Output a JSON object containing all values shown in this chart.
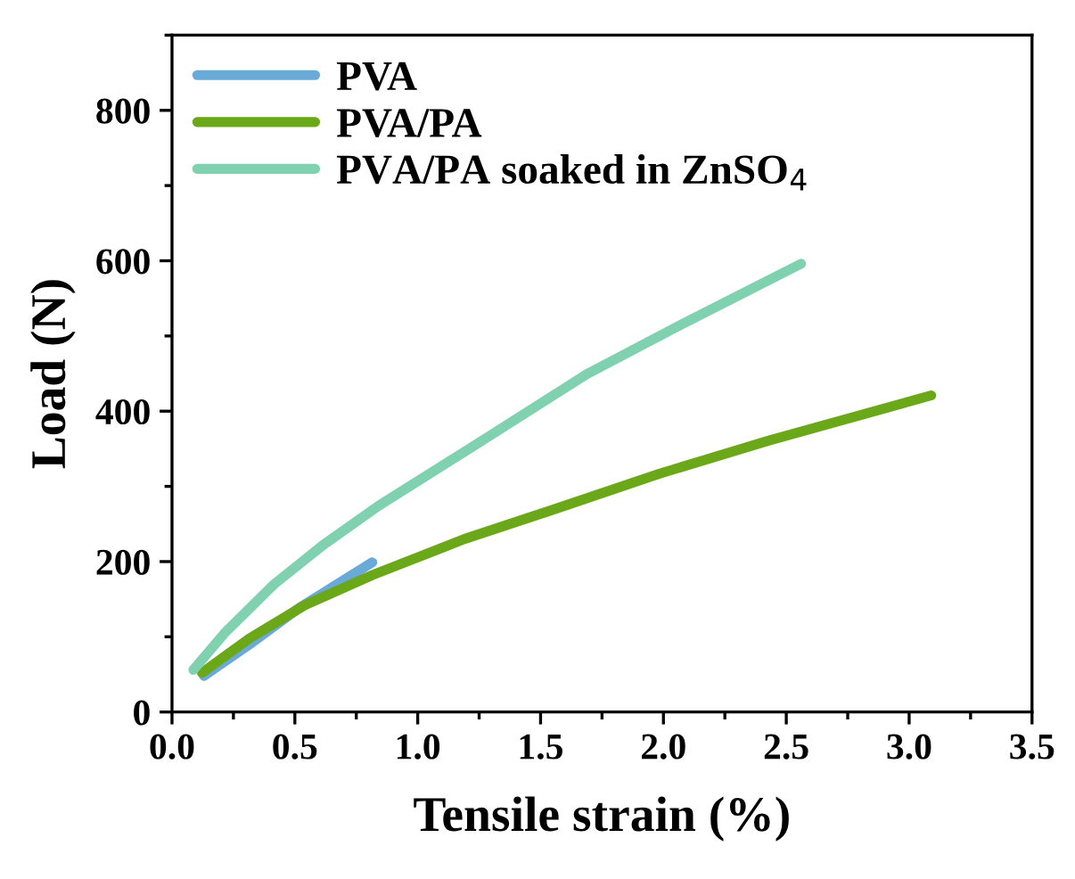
{
  "chart_data": {
    "type": "line",
    "xlabel": "Tensile strain (%)",
    "ylabel": "Load (N)",
    "xlim": [
      0,
      3.5
    ],
    "xticks": [
      {
        "value": 0,
        "label": "0.0"
      },
      0.5,
      {
        "value": 1,
        "label": "1.0"
      },
      1.5,
      {
        "value": 2,
        "label": "2.0"
      },
      2.5,
      {
        "value": 3,
        "label": "3.0"
      },
      3.5
    ],
    "ylim": [
      0,
      900
    ],
    "yticks": [
      0,
      200,
      400,
      600,
      800
    ],
    "grid": false,
    "legend": "top left",
    "marker": "none",
    "line_style": "solid",
    "series": [
      {
        "name": "PVA",
        "color": "#6aaad8",
        "x": [
          0.13,
          0.316,
          0.516,
          0.815
        ],
        "values": [
          48,
          90,
          138,
          199
        ]
      },
      {
        "name": "PVA/PA",
        "color": "#6aa81a",
        "x": [
          0.122,
          0.316,
          0.54,
          0.815,
          1.19,
          1.56,
          1.985,
          2.43,
          3.09
        ],
        "values": [
          52,
          98,
          142,
          182,
          230,
          270,
          317,
          361,
          421
        ]
      },
      {
        "name": "PVA/PA soaked in ZnSO$_{4}$",
        "color": "#7fd1b0",
        "x": [
          0.087,
          0.217,
          0.416,
          0.615,
          0.84,
          1.263,
          1.687,
          2.06,
          2.56
        ],
        "values": [
          56,
          106,
          170,
          222,
          274,
          361,
          449,
          513,
          596
        ]
      }
    ]
  }
}
